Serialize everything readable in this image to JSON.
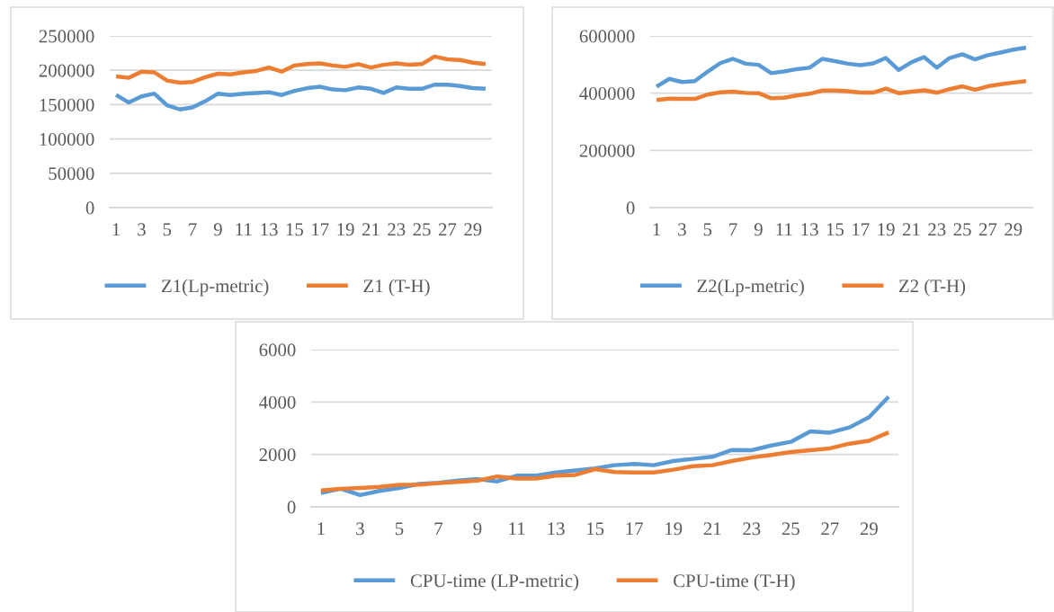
{
  "chart_data": [
    {
      "type": "line",
      "categories": [
        "1",
        null,
        "3",
        null,
        "5",
        null,
        "7",
        null,
        "9",
        null,
        "11",
        null,
        "13",
        null,
        "15",
        null,
        "17",
        null,
        "19",
        null,
        "21",
        null,
        "23",
        null,
        "25",
        null,
        "27",
        null,
        "29",
        null
      ],
      "series": [
        {
          "name": "Z1(Lp-metric)",
          "color": "#5b9bd5",
          "values": [
            164000,
            153000,
            162000,
            166000,
            149000,
            143000,
            146000,
            155000,
            166000,
            164000,
            166000,
            167000,
            168000,
            164000,
            170000,
            174000,
            176000,
            172000,
            171000,
            175000,
            173000,
            167000,
            175000,
            173000,
            173000,
            179000,
            179000,
            177000,
            174000,
            173000
          ]
        },
        {
          "name": "Z1 (T-H)",
          "color": "#ed7d31",
          "values": [
            191000,
            189000,
            198000,
            197000,
            185000,
            182000,
            183000,
            190000,
            195000,
            194000,
            197000,
            199000,
            204000,
            198000,
            207000,
            209000,
            210000,
            207000,
            205000,
            209000,
            204000,
            208000,
            210000,
            208000,
            209000,
            220000,
            216000,
            215000,
            211000,
            209000
          ]
        }
      ],
      "ylim": [
        0,
        250000
      ],
      "yticks": [
        0,
        50000,
        100000,
        150000,
        200000,
        250000
      ],
      "grid": "y",
      "legend": "bottom",
      "line_style": "solid",
      "marker": "none"
    },
    {
      "type": "line",
      "categories": [
        "1",
        null,
        "3",
        null,
        "5",
        null,
        "7",
        null,
        "9",
        null,
        "11",
        null,
        "13",
        null,
        "15",
        null,
        "17",
        null,
        "19",
        null,
        "21",
        null,
        "23",
        null,
        "25",
        null,
        "27",
        null,
        "29",
        null
      ],
      "series": [
        {
          "name": "Z2(Lp-metric)",
          "color": "#5b9bd5",
          "values": [
            423000,
            450000,
            439000,
            442000,
            475000,
            505000,
            520000,
            503000,
            499000,
            470000,
            476000,
            484000,
            489000,
            520000,
            512000,
            503000,
            498000,
            504000,
            523000,
            481000,
            508000,
            526000,
            489000,
            523000,
            536000,
            518000,
            533000,
            542000,
            552000,
            559000
          ]
        },
        {
          "name": "Z2 (T-H)",
          "color": "#ed7d31",
          "values": [
            376000,
            381000,
            380000,
            380000,
            395000,
            403000,
            405000,
            401000,
            400000,
            382000,
            384000,
            392000,
            398000,
            409000,
            409000,
            407000,
            402000,
            402000,
            416000,
            400000,
            405000,
            410000,
            402000,
            414000,
            424000,
            412000,
            424000,
            431000,
            437000,
            442000
          ]
        }
      ],
      "ylim": [
        0,
        600000
      ],
      "yticks": [
        0,
        200000,
        400000,
        600000
      ],
      "grid": "y",
      "legend": "bottom",
      "line_style": "solid",
      "marker": "none"
    },
    {
      "type": "line",
      "categories": [
        "1",
        null,
        "3",
        null,
        "5",
        null,
        "7",
        null,
        "9",
        null,
        "11",
        null,
        "13",
        null,
        "15",
        null,
        "17",
        null,
        "19",
        null,
        "21",
        null,
        "23",
        null,
        "25",
        null,
        "27",
        null,
        "29",
        null
      ],
      "series": [
        {
          "name": "CPU-time (LP-metric)",
          "color": "#5b9bd5",
          "values": [
            530,
            690,
            450,
            610,
            720,
            875,
            920,
            1000,
            1060,
            970,
            1190,
            1190,
            1310,
            1390,
            1470,
            1590,
            1640,
            1590,
            1750,
            1830,
            1910,
            2170,
            2160,
            2340,
            2480,
            2880,
            2830,
            3030,
            3420,
            4200
          ]
        },
        {
          "name": "CPU-time (T-H)",
          "color": "#ed7d31",
          "values": [
            625,
            690,
            720,
            765,
            845,
            845,
            905,
            950,
            1000,
            1160,
            1080,
            1080,
            1190,
            1220,
            1440,
            1330,
            1310,
            1310,
            1420,
            1550,
            1590,
            1750,
            1880,
            1980,
            2090,
            2160,
            2230,
            2410,
            2520,
            2840
          ]
        }
      ],
      "ylim": [
        0,
        6000
      ],
      "yticks": [
        0,
        2000,
        4000,
        6000
      ],
      "grid": "y",
      "legend": "bottom",
      "line_style": "solid",
      "marker": "none"
    }
  ]
}
